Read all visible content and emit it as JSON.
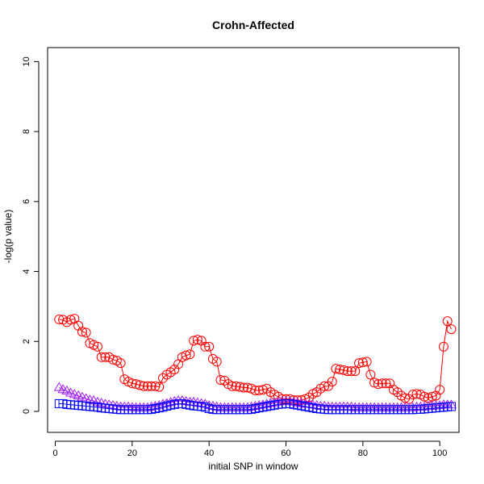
{
  "chart_data": {
    "type": "scatter",
    "title": "Crohn-Affected",
    "xlabel": "initial SNP in window",
    "ylabel": "-log(p value)",
    "xlim": [
      -2,
      105
    ],
    "ylim": [
      -0.6,
      10.4
    ],
    "xticks": [
      0,
      20,
      40,
      60,
      80,
      100
    ],
    "yticks": [
      0,
      2,
      4,
      6,
      8,
      10
    ],
    "grid": false,
    "legend": "none",
    "series": [
      {
        "marker": "circle",
        "color": "#ff0000",
        "connected": true,
        "x": [
          1,
          2,
          3,
          4,
          5,
          6,
          7,
          8,
          9,
          10,
          11,
          12,
          13,
          14,
          15,
          16,
          17,
          18,
          19,
          20,
          21,
          22,
          23,
          24,
          25,
          26,
          27,
          28,
          29,
          30,
          31,
          32,
          33,
          34,
          35,
          36,
          37,
          38,
          39,
          40,
          41,
          42,
          43,
          44,
          45,
          46,
          47,
          48,
          49,
          50,
          51,
          52,
          53,
          54,
          55,
          56,
          57,
          58,
          59,
          60,
          61,
          62,
          63,
          64,
          65,
          66,
          67,
          68,
          69,
          70,
          71,
          72,
          73,
          74,
          75,
          76,
          77,
          78,
          79,
          80,
          81,
          82,
          83,
          84,
          85,
          86,
          87,
          88,
          89,
          90,
          91,
          92,
          93,
          94,
          95,
          96,
          97,
          98,
          99,
          100,
          101,
          102,
          103
        ],
        "y": [
          2.63,
          2.62,
          2.55,
          2.62,
          2.65,
          2.45,
          2.28,
          2.25,
          1.95,
          1.9,
          1.85,
          1.55,
          1.55,
          1.55,
          1.48,
          1.45,
          1.38,
          0.92,
          0.85,
          0.8,
          0.78,
          0.75,
          0.72,
          0.72,
          0.72,
          0.72,
          0.7,
          0.95,
          1.05,
          1.12,
          1.2,
          1.35,
          1.55,
          1.6,
          1.63,
          2.02,
          2.05,
          2.02,
          1.85,
          1.85,
          1.5,
          1.42,
          0.9,
          0.88,
          0.78,
          0.72,
          0.72,
          0.7,
          0.68,
          0.68,
          0.65,
          0.6,
          0.6,
          0.62,
          0.65,
          0.55,
          0.48,
          0.42,
          0.35,
          0.35,
          0.35,
          0.32,
          0.32,
          0.32,
          0.35,
          0.4,
          0.5,
          0.55,
          0.65,
          0.72,
          0.72,
          0.85,
          1.22,
          1.2,
          1.18,
          1.15,
          1.15,
          1.15,
          1.38,
          1.4,
          1.42,
          1.05,
          0.82,
          0.78,
          0.8,
          0.8,
          0.8,
          0.62,
          0.55,
          0.45,
          0.38,
          0.35,
          0.48,
          0.5,
          0.48,
          0.42,
          0.38,
          0.42,
          0.45,
          0.62,
          1.85,
          2.58,
          2.35
        ]
      },
      {
        "marker": "triangle",
        "color": "#a020f0",
        "connected": true,
        "x": [
          1,
          2,
          3,
          4,
          5,
          6,
          7,
          8,
          9,
          10,
          11,
          12,
          13,
          14,
          15,
          16,
          17,
          18,
          19,
          20,
          21,
          22,
          23,
          24,
          25,
          26,
          27,
          28,
          29,
          30,
          31,
          32,
          33,
          34,
          35,
          36,
          37,
          38,
          39,
          40,
          41,
          42,
          43,
          44,
          45,
          46,
          47,
          48,
          49,
          50,
          51,
          52,
          53,
          54,
          55,
          56,
          57,
          58,
          59,
          60,
          61,
          62,
          63,
          64,
          65,
          66,
          67,
          68,
          69,
          70,
          71,
          72,
          73,
          74,
          75,
          76,
          77,
          78,
          79,
          80,
          81,
          82,
          83,
          84,
          85,
          86,
          87,
          88,
          89,
          90,
          91,
          92,
          93,
          94,
          95,
          96,
          97,
          98,
          99,
          100,
          101,
          102,
          103
        ],
        "y": [
          0.68,
          0.62,
          0.58,
          0.52,
          0.48,
          0.44,
          0.4,
          0.36,
          0.32,
          0.3,
          0.26,
          0.23,
          0.2,
          0.18,
          0.16,
          0.14,
          0.12,
          0.12,
          0.12,
          0.11,
          0.1,
          0.1,
          0.1,
          0.1,
          0.12,
          0.14,
          0.16,
          0.2,
          0.22,
          0.25,
          0.28,
          0.3,
          0.3,
          0.28,
          0.26,
          0.26,
          0.24,
          0.22,
          0.2,
          0.16,
          0.14,
          0.12,
          0.1,
          0.1,
          0.1,
          0.1,
          0.1,
          0.1,
          0.1,
          0.1,
          0.12,
          0.14,
          0.16,
          0.18,
          0.2,
          0.22,
          0.24,
          0.26,
          0.28,
          0.28,
          0.28,
          0.26,
          0.24,
          0.22,
          0.2,
          0.2,
          0.18,
          0.16,
          0.14,
          0.14,
          0.12,
          0.12,
          0.12,
          0.12,
          0.12,
          0.12,
          0.12,
          0.1,
          0.1,
          0.1,
          0.1,
          0.1,
          0.1,
          0.1,
          0.1,
          0.1,
          0.1,
          0.1,
          0.1,
          0.1,
          0.1,
          0.1,
          0.1,
          0.12,
          0.12,
          0.12,
          0.14,
          0.14,
          0.16,
          0.16,
          0.18,
          0.18,
          0.18
        ]
      },
      {
        "marker": "square",
        "color": "#0000ff",
        "connected": true,
        "x": [
          1,
          2,
          3,
          4,
          5,
          6,
          7,
          8,
          9,
          10,
          11,
          12,
          13,
          14,
          15,
          16,
          17,
          18,
          19,
          20,
          21,
          22,
          23,
          24,
          25,
          26,
          27,
          28,
          29,
          30,
          31,
          32,
          33,
          34,
          35,
          36,
          37,
          38,
          39,
          40,
          41,
          42,
          43,
          44,
          45,
          46,
          47,
          48,
          49,
          50,
          51,
          52,
          53,
          54,
          55,
          56,
          57,
          58,
          59,
          60,
          61,
          62,
          63,
          64,
          65,
          66,
          67,
          68,
          69,
          70,
          71,
          72,
          73,
          74,
          75,
          76,
          77,
          78,
          79,
          80,
          81,
          82,
          83,
          84,
          85,
          86,
          87,
          88,
          89,
          90,
          91,
          92,
          93,
          94,
          95,
          96,
          97,
          98,
          99,
          100,
          101,
          102,
          103
        ],
        "y": [
          0.22,
          0.22,
          0.2,
          0.19,
          0.18,
          0.17,
          0.16,
          0.15,
          0.14,
          0.13,
          0.12,
          0.1,
          0.09,
          0.08,
          0.07,
          0.06,
          0.05,
          0.05,
          0.05,
          0.05,
          0.05,
          0.05,
          0.05,
          0.05,
          0.06,
          0.08,
          0.1,
          0.12,
          0.15,
          0.18,
          0.2,
          0.22,
          0.22,
          0.2,
          0.18,
          0.16,
          0.15,
          0.14,
          0.12,
          0.08,
          0.06,
          0.05,
          0.05,
          0.05,
          0.05,
          0.05,
          0.05,
          0.05,
          0.05,
          0.05,
          0.06,
          0.08,
          0.1,
          0.12,
          0.14,
          0.16,
          0.18,
          0.2,
          0.21,
          0.22,
          0.22,
          0.2,
          0.18,
          0.16,
          0.14,
          0.12,
          0.1,
          0.08,
          0.07,
          0.06,
          0.05,
          0.05,
          0.05,
          0.05,
          0.05,
          0.05,
          0.05,
          0.05,
          0.05,
          0.05,
          0.05,
          0.05,
          0.05,
          0.05,
          0.05,
          0.05,
          0.05,
          0.05,
          0.05,
          0.05,
          0.05,
          0.05,
          0.05,
          0.06,
          0.06,
          0.07,
          0.08,
          0.09,
          0.1,
          0.11,
          0.12,
          0.13,
          0.14
        ]
      }
    ]
  }
}
